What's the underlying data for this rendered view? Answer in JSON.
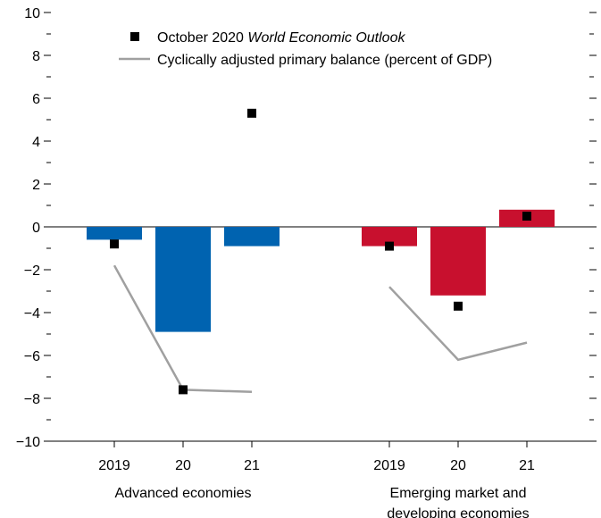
{
  "chart_data": {
    "type": "bar",
    "y_axis": {
      "ylim": [
        -10,
        10
      ],
      "major_ticks": [
        10,
        8,
        6,
        4,
        2,
        0,
        -2,
        -4,
        -6,
        -8,
        -10
      ],
      "tick_labels": [
        "10",
        "8",
        "6",
        "4",
        "2",
        "0",
        "−2",
        "−4",
        "−6",
        "−8",
        "−10"
      ]
    },
    "legend": {
      "placement": "top",
      "items": [
        {
          "marker": "square",
          "text_prefix": "October 2020 ",
          "text_italic": "World Economic Outlook"
        },
        {
          "marker": "line",
          "text": "Cyclically adjusted primary balance (percent of GDP)"
        }
      ]
    },
    "groups": [
      {
        "label_lines": [
          "Advanced economies"
        ],
        "color": "#0063b0",
        "categories": [
          "2019",
          "20",
          "21"
        ],
        "bars": [
          -0.6,
          -4.9,
          -0.9
        ],
        "weo_markers": [
          -0.8,
          -7.6,
          5.3
        ],
        "cyclically_adjusted": [
          -1.8,
          -7.6,
          -7.7
        ]
      },
      {
        "label_lines": [
          "Emerging market and",
          "developing economies"
        ],
        "color": "#c8102e",
        "categories": [
          "2019",
          "20",
          "21"
        ],
        "bars": [
          -0.9,
          -3.2,
          0.8
        ],
        "weo_markers": [
          -0.9,
          -3.7,
          0.5
        ],
        "cyclically_adjusted": [
          -2.8,
          -6.2,
          -5.4
        ]
      }
    ],
    "colors": {
      "axis": "#000000",
      "marker": "#000000",
      "line": "#a0a0a0"
    }
  }
}
